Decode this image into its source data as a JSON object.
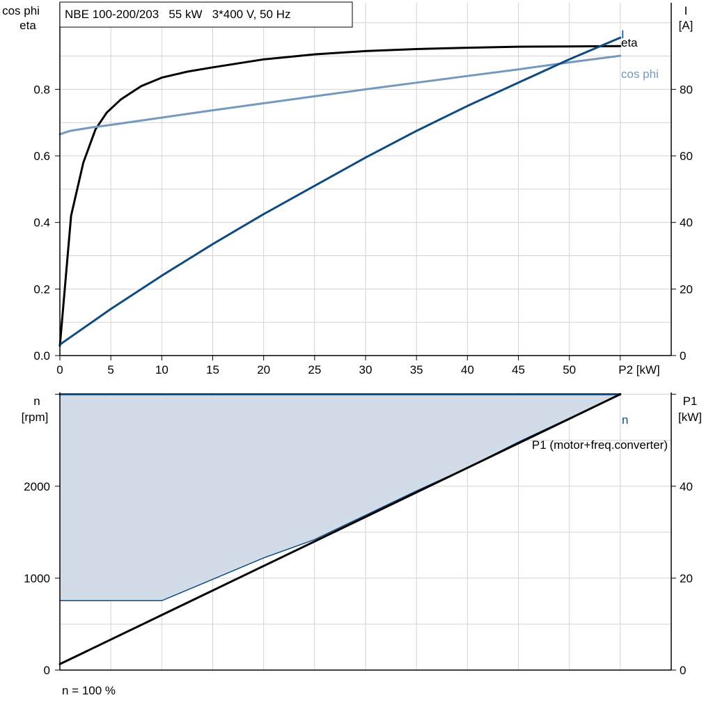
{
  "header": "NBE 100-200/203   55 kW   3*400 V, 50 Hz",
  "footer_note": "n = 100 %",
  "colors": {
    "eta": "#000000",
    "current": "#0f4a80",
    "cos_phi": "#7399bf",
    "speed": "#0f4a80",
    "p1": "#000000",
    "fill": "#d1dce8",
    "grid": "#d2d2d2",
    "axis": "#000000"
  },
  "chart_data": [
    {
      "type": "line",
      "title": "NBE 100-200/203   55 kW   3*400 V, 50 Hz",
      "xlabel": "P2 [kW]",
      "xlim": [
        0,
        60
      ],
      "x_ticks": [
        0,
        5,
        10,
        15,
        20,
        25,
        30,
        35,
        40,
        45,
        50
      ],
      "ylabel_left": [
        "cos phi",
        "eta"
      ],
      "ylim_left": [
        0,
        1.06
      ],
      "y_ticks_left": [
        "0.0",
        "0.2",
        "0.4",
        "0.6",
        "0.8"
      ],
      "ylabel_right": [
        "I",
        "[A]"
      ],
      "ylim_right": [
        0,
        106
      ],
      "y_ticks_right": [
        "0",
        "20",
        "40",
        "60",
        "80"
      ],
      "grid": true,
      "series": [
        {
          "name": "eta",
          "axis": "left",
          "x": [
            0,
            1.1,
            2.3,
            3.5,
            4.6,
            6,
            8,
            10,
            12.5,
            15,
            20,
            25,
            30,
            35,
            40,
            45,
            50,
            55
          ],
          "values": [
            0.03,
            0.42,
            0.58,
            0.68,
            0.73,
            0.77,
            0.81,
            0.835,
            0.853,
            0.866,
            0.89,
            0.905,
            0.915,
            0.921,
            0.925,
            0.928,
            0.929,
            0.93
          ]
        },
        {
          "name": "cos phi",
          "axis": "left",
          "x": [
            0,
            1,
            3,
            5,
            10,
            15,
            20,
            25,
            30,
            35,
            40,
            45,
            50,
            55
          ],
          "values": [
            0.665,
            0.675,
            0.685,
            0.693,
            0.715,
            0.737,
            0.758,
            0.779,
            0.8,
            0.82,
            0.84,
            0.86,
            0.881,
            0.901
          ]
        },
        {
          "name": "I",
          "axis": "right",
          "x": [
            0,
            5,
            10,
            15,
            20,
            25,
            30,
            35,
            40,
            45,
            50,
            55
          ],
          "values": [
            3.3,
            14,
            24,
            33.5,
            42.5,
            51,
            59.5,
            67.5,
            75,
            82,
            89,
            95.5
          ]
        }
      ]
    },
    {
      "type": "area",
      "xlim": [
        0,
        60
      ],
      "ylabel_left": [
        "n",
        "[rpm]"
      ],
      "ylim_left": [
        0,
        3020
      ],
      "y_ticks_left": [
        "0",
        "1000",
        "2000"
      ],
      "ylabel_right": [
        "P1",
        "[kW]"
      ],
      "ylim_right": [
        0,
        60.4
      ],
      "y_ticks_right": [
        "0",
        "20",
        "40"
      ],
      "grid": true,
      "series": [
        {
          "name": "n",
          "axis": "left",
          "x": [
            0,
            55
          ],
          "values": [
            3000,
            3000
          ]
        },
        {
          "name": "P1 (motor+freq.converter)",
          "axis": "right",
          "x": [
            0,
            55
          ],
          "values": [
            1.3,
            60
          ]
        }
      ],
      "operating_range": {
        "x": [
          0,
          55,
          55,
          50,
          45,
          40,
          35,
          25,
          20,
          10,
          0
        ],
        "rpm": [
          3000,
          3000,
          2995,
          2740,
          2480,
          2200,
          1950,
          1420,
          1220,
          755,
          755
        ]
      }
    }
  ]
}
